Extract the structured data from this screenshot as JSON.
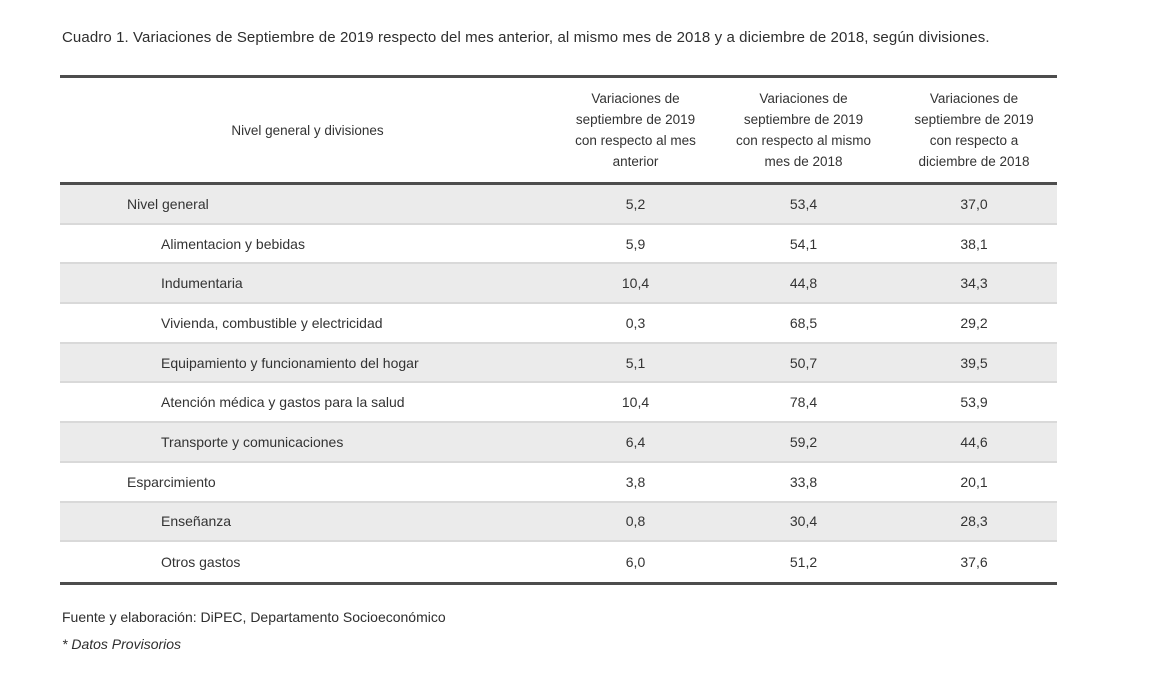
{
  "title": "Cuadro 1. Variaciones de Septiembre de 2019 respecto del mes anterior, al mismo mes de 2018 y a diciembre de 2018, según divisiones.",
  "table": {
    "headers": {
      "col1": "Nivel general y divisiones",
      "col2": "Variaciones de\nseptiembre de 2019\ncon respecto al mes\nanterior",
      "col3": "Variaciones de\nseptiembre de 2019\ncon respecto al mismo\nmes de 2018",
      "col4": "Variaciones de\nseptiembre de 2019\ncon respecto a\ndiciembre de 2018"
    },
    "rows": [
      {
        "label": "Nivel general",
        "values": [
          "5,2",
          "53,4",
          "37,0"
        ]
      },
      {
        "label": "Alimentacion y bebidas",
        "values": [
          "5,9",
          "54,1",
          "38,1"
        ]
      },
      {
        "label": "Indumentaria",
        "values": [
          "10,4",
          "44,8",
          "34,3"
        ]
      },
      {
        "label": "Vivienda, combustible y electricidad",
        "values": [
          "0,3",
          "68,5",
          "29,2"
        ]
      },
      {
        "label": "Equipamiento y funcionamiento del hogar",
        "values": [
          "5,1",
          "50,7",
          "39,5"
        ]
      },
      {
        "label": "Atención médica y gastos para la salud",
        "values": [
          "10,4",
          "78,4",
          "53,9"
        ]
      },
      {
        "label": "Transporte y comunicaciones",
        "values": [
          "6,4",
          "59,2",
          "44,6"
        ]
      },
      {
        "label": "Esparcimiento",
        "values": [
          "3,8",
          "33,8",
          "20,1"
        ]
      },
      {
        "label": "Enseñanza",
        "values": [
          "0,8",
          "30,4",
          "28,3"
        ]
      },
      {
        "label": "Otros gastos",
        "values": [
          "6,0",
          "51,2",
          "37,6"
        ]
      }
    ]
  },
  "footer": {
    "source": "Fuente y elaboración: DiPEC, Departamento Socioeconómico",
    "note": "* Datos Provisorios"
  },
  "colors": {
    "row_shade": "#ebebeb",
    "row_divider": "#d9d9d9",
    "table_border": "#4d4d4d",
    "text": "#333333"
  }
}
